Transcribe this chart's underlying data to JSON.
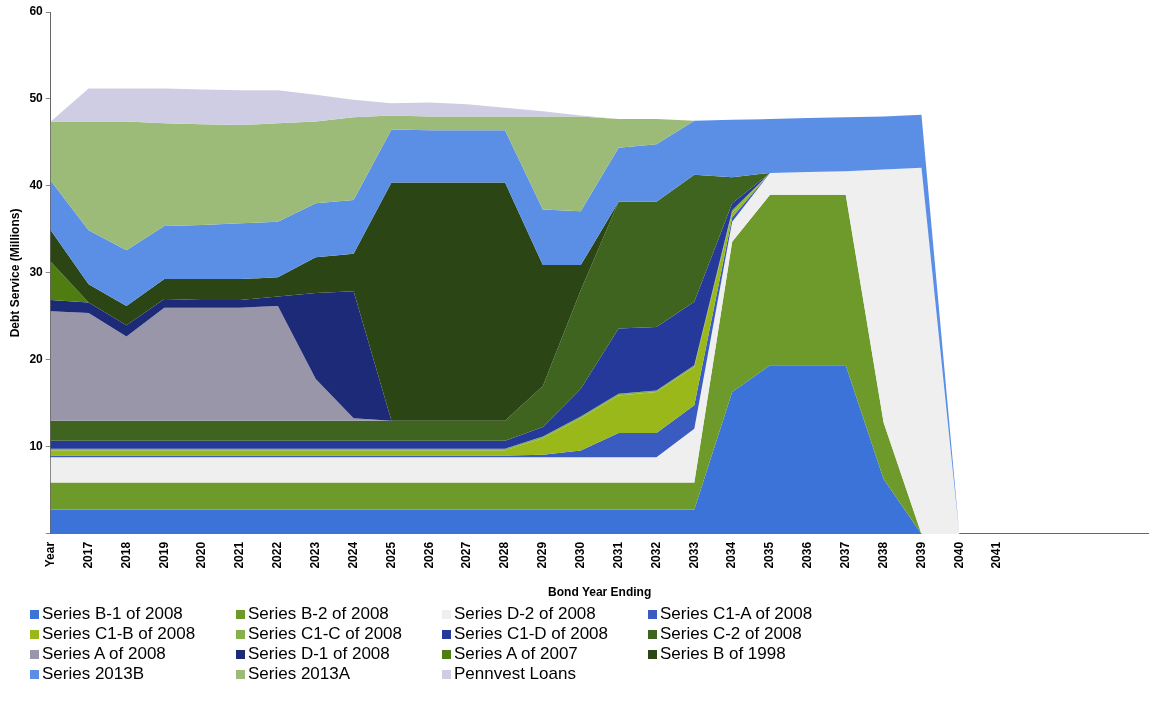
{
  "chart_data": {
    "type": "area",
    "stacked": true,
    "xlabel": "Bond Year Ending",
    "ylabel": "Debt Service (Millions)",
    "categories": [
      "Year",
      "2017",
      "2018",
      "2019",
      "2020",
      "2021",
      "2022",
      "2023",
      "2024",
      "2025",
      "2026",
      "2027",
      "2028",
      "2029",
      "2030",
      "2031",
      "2032",
      "2033",
      "2034",
      "2035",
      "2036",
      "2037",
      "2038",
      "2039",
      "2040",
      "2041",
      null,
      null,
      null,
      null
    ],
    "ylim": [
      0,
      60
    ],
    "yticks": [
      {
        "value": 0,
        "label": null
      },
      10,
      20,
      30,
      40,
      50,
      60
    ],
    "grid": false,
    "legend": "bottom",
    "series": [
      {
        "name": "Series B-1 of 2008",
        "color": "#3c73d9",
        "values": [
          2.8,
          2.8,
          2.8,
          2.8,
          2.8,
          2.8,
          2.8,
          2.8,
          2.8,
          2.8,
          2.8,
          2.8,
          2.8,
          2.8,
          2.8,
          2.8,
          2.8,
          2.8,
          16.3,
          19.4,
          19.4,
          19.4,
          6.3,
          0,
          null,
          null,
          null,
          null,
          null,
          null
        ]
      },
      {
        "name": "Series B-2 of 2008",
        "color": "#6e9a2c",
        "values": [
          3.1,
          3.1,
          3.1,
          3.1,
          3.1,
          3.1,
          3.1,
          3.1,
          3.1,
          3.1,
          3.1,
          3.1,
          3.1,
          3.1,
          3.1,
          3.1,
          3.1,
          3.1,
          17.3,
          19.6,
          19.6,
          19.6,
          6.5,
          0,
          null,
          null,
          null,
          null,
          null,
          null
        ]
      },
      {
        "name": "Series D-2 of 2008",
        "color": "#efefef",
        "values": [
          2.9,
          2.9,
          2.9,
          2.9,
          2.9,
          2.9,
          2.9,
          2.9,
          2.9,
          2.9,
          2.9,
          2.9,
          2.9,
          2.9,
          2.9,
          2.9,
          2.9,
          6.2,
          2.3,
          2.5,
          2.6,
          2.7,
          29.1,
          42.1,
          0,
          null,
          null,
          null,
          null,
          null
        ]
      },
      {
        "name": "Series C1-A of 2008",
        "color": "#3a5bc0",
        "values": [
          0.2,
          0.2,
          0.2,
          0.2,
          0.2,
          0.2,
          0.2,
          0.2,
          0.2,
          0.2,
          0.2,
          0.2,
          0.2,
          0.3,
          0.8,
          2.8,
          2.8,
          2.7,
          0.5,
          0,
          null,
          null,
          null,
          null,
          null,
          null,
          null,
          null,
          null,
          null
        ]
      },
      {
        "name": "Series C1-B of 2008",
        "color": "#9ab81a",
        "values": [
          0.6,
          0.6,
          0.6,
          0.6,
          0.6,
          0.6,
          0.6,
          0.6,
          0.6,
          0.6,
          0.6,
          0.6,
          0.6,
          1.9,
          3.7,
          4.3,
          4.7,
          4.4,
          0.5,
          0,
          null,
          null,
          null,
          null,
          null,
          null,
          null,
          null,
          null,
          null
        ]
      },
      {
        "name": "Series C1-C of 2008",
        "color": "#86b04c",
        "values": [
          0.2,
          0.2,
          0.2,
          0.2,
          0.2,
          0.2,
          0.2,
          0.2,
          0.2,
          0.2,
          0.2,
          0.2,
          0.2,
          0.2,
          0.2,
          0.2,
          0.2,
          0.2,
          0.3,
          0,
          null,
          null,
          null,
          null,
          null,
          null,
          null,
          null,
          null,
          null
        ]
      },
      {
        "name": "Series C1-D of 2008",
        "color": "#25399a",
        "values": [
          0.9,
          0.9,
          0.9,
          0.9,
          0.9,
          0.9,
          0.9,
          0.9,
          0.9,
          0.9,
          0.9,
          0.9,
          0.9,
          1.1,
          3.2,
          7.5,
          7.3,
          7.3,
          0.8,
          0,
          null,
          null,
          null,
          null,
          null,
          null,
          null,
          null,
          null,
          null
        ]
      },
      {
        "name": "Series C-2 of 2008",
        "color": "#3f6420",
        "values": [
          2.3,
          2.3,
          2.3,
          2.3,
          2.3,
          2.3,
          2.3,
          2.3,
          2.3,
          2.3,
          2.3,
          2.3,
          2.3,
          4.7,
          11.3,
          14.6,
          14.4,
          14.6,
          3.0,
          0,
          null,
          null,
          null,
          null,
          null,
          null,
          null,
          null,
          null,
          null
        ]
      },
      {
        "name": "Series A of 2008",
        "color": "#9a96aa",
        "values": [
          12.6,
          12.4,
          9.7,
          13.0,
          13.0,
          13.0,
          13.2,
          4.8,
          0.3,
          0,
          null,
          null,
          null,
          null,
          null,
          null,
          null,
          null,
          null,
          null,
          null,
          null,
          null,
          null,
          null,
          null,
          null,
          null,
          null,
          null
        ]
      },
      {
        "name": "Series D-1 of 2008",
        "color": "#1d2a78",
        "values": [
          1.3,
          1.2,
          1.3,
          1.0,
          0.9,
          0.9,
          1.1,
          9.9,
          14.6,
          0,
          null,
          null,
          null,
          null,
          null,
          null,
          null,
          null,
          null,
          null,
          null,
          null,
          null,
          null,
          null,
          null,
          null,
          null,
          null,
          null
        ]
      },
      {
        "name": "Series A of 2007",
        "color": "#4f7d12",
        "values": [
          4.4,
          0,
          null,
          null,
          null,
          null,
          null,
          null,
          null,
          null,
          null,
          null,
          null,
          null,
          null,
          null,
          null,
          null,
          null,
          null,
          null,
          null,
          null,
          null,
          null,
          null,
          null,
          null,
          null,
          null
        ]
      },
      {
        "name": "Series B of 1998",
        "color": "#2b4514",
        "values": [
          3.6,
          2.1,
          2.2,
          2.3,
          2.4,
          2.4,
          2.2,
          4.1,
          4.3,
          27.4,
          27.4,
          27.4,
          27.4,
          13.9,
          2.9,
          0,
          null,
          null,
          null,
          null,
          null,
          null,
          null,
          null,
          null,
          null,
          null,
          null,
          null,
          null
        ]
      },
      {
        "name": "Series 2013B",
        "color": "#5b8fe6",
        "values": [
          5.7,
          6.2,
          6.4,
          6.1,
          6.2,
          6.4,
          6.4,
          6.2,
          6.2,
          6.1,
          6.0,
          6.0,
          6.0,
          6.4,
          6.2,
          6.2,
          6.6,
          6.2,
          6.6,
          6.2,
          6.2,
          6.2,
          6.1,
          6.1,
          0,
          null,
          null,
          null,
          null,
          null
        ]
      },
      {
        "name": "Series 2013A",
        "color": "#9cbb78",
        "values": [
          6.8,
          12.5,
          14.8,
          11.8,
          11.6,
          11.3,
          11.3,
          9.4,
          9.5,
          1.6,
          1.6,
          1.6,
          1.6,
          10.7,
          10.9,
          3.3,
          2.9,
          0,
          null,
          null,
          null,
          null,
          null,
          null,
          null,
          null,
          null,
          null,
          null,
          null
        ]
      },
      {
        "name": "Pennvest Loans",
        "color": "#cfcde3",
        "values": [
          0,
          3.8,
          3.8,
          4.0,
          4.0,
          4.0,
          3.8,
          3.1,
          2.0,
          1.4,
          1.6,
          1.4,
          1.0,
          0.6,
          0.1,
          0,
          null,
          null,
          null,
          null,
          null,
          null,
          null,
          null,
          null,
          null,
          null,
          null,
          null,
          null
        ]
      }
    ]
  }
}
